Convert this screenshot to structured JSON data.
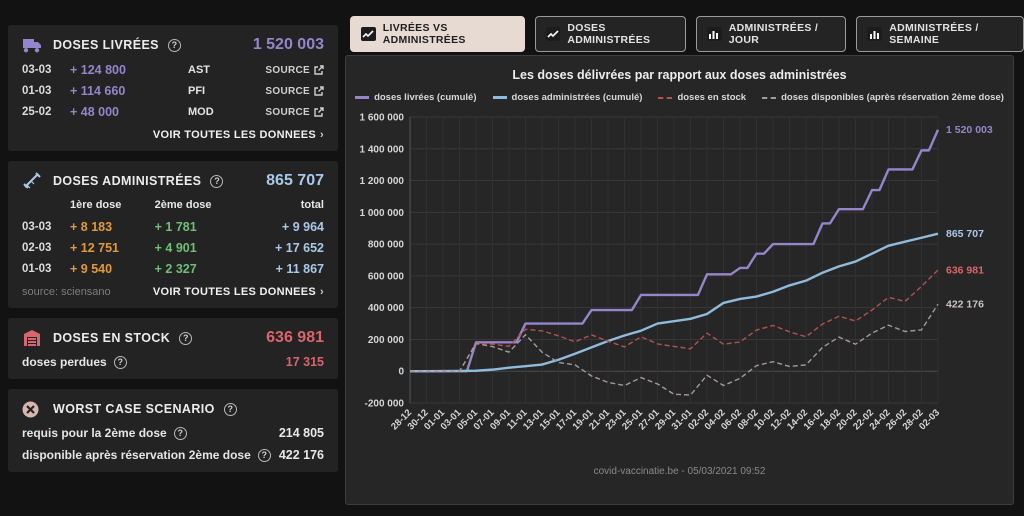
{
  "colors": {
    "purple": "#9585cb",
    "blue": "#8fbbdd",
    "red_line": "#b4524e",
    "red_text": "#d9656d",
    "gray_line": "#a39a9a",
    "orange": "#e09a3e",
    "green": "#6fbf77",
    "lightblue_text": "#a9c9e8",
    "active_tab_bg": "#e6dad3",
    "grid": "#3a3a3a"
  },
  "sidebar": {
    "livrees": {
      "title": "DOSES LIVRÉES",
      "total": "1 520 003",
      "rows": [
        {
          "date": "03-03",
          "amount": "+ 124 800",
          "brand": "AST",
          "source_label": "SOURCE"
        },
        {
          "date": "01-03",
          "amount": "+ 114 660",
          "brand": "PFI",
          "source_label": "SOURCE"
        },
        {
          "date": "25-02",
          "amount": "+ 48 000",
          "brand": "MOD",
          "source_label": "SOURCE"
        }
      ],
      "link": "VOIR TOUTES LES DONNEES",
      "chevron": "›"
    },
    "administrees": {
      "title": "DOSES ADMINISTRÉES",
      "total": "865 707",
      "columns": [
        "1ère dose",
        "2ème dose",
        "total"
      ],
      "rows": [
        {
          "date": "03-03",
          "dose1": "+ 8 183",
          "dose2": "+ 1 781",
          "total": "+ 9 964"
        },
        {
          "date": "02-03",
          "dose1": "+ 12 751",
          "dose2": "+ 4 901",
          "total": "+ 17 652"
        },
        {
          "date": "01-03",
          "dose1": "+ 9 540",
          "dose2": "+ 2 327",
          "total": "+ 11 867"
        }
      ],
      "source": "source: sciensano",
      "link": "VOIR TOUTES LES DONNEES",
      "chevron": "›"
    },
    "stock": {
      "title": "DOSES EN STOCK",
      "total": "636 981",
      "perdues_label": "doses perdues",
      "perdues_value": "17 315"
    },
    "worst": {
      "title": "WORST CASE SCENARIO",
      "rows": [
        {
          "label": "requis pour la 2ème dose",
          "value": "214 805"
        },
        {
          "label": "disponible après réservation 2ème dose",
          "value": "422 176"
        }
      ]
    }
  },
  "tabs": [
    {
      "label": "LIVRÉES VS ADMINISTRÉES",
      "active": true,
      "icon": "line-chart"
    },
    {
      "label": "DOSES ADMINISTRÉES",
      "active": false,
      "icon": "line-chart"
    },
    {
      "label": "ADMINISTRÉES / JOUR",
      "active": false,
      "icon": "bar-chart"
    },
    {
      "label": "ADMINISTRÉES / SEMAINE",
      "active": false,
      "icon": "bar-chart"
    }
  ],
  "chart_data": {
    "type": "line",
    "title": "Les doses délivrées par rapport aux doses administrées",
    "footer": "covid-vaccinatie.be - 05/03/2021 09:52",
    "ylim": [
      -200000,
      1600000
    ],
    "ytick_step": 200000,
    "grid": true,
    "legend_position": "top",
    "x": [
      "28-12",
      "30-12",
      "01-01",
      "03-01",
      "05-01",
      "07-01",
      "09-01",
      "11-01",
      "13-01",
      "15-01",
      "17-01",
      "19-01",
      "21-01",
      "23-01",
      "25-01",
      "27-01",
      "29-01",
      "31-01",
      "02-02",
      "04-02",
      "06-02",
      "08-02",
      "10-02",
      "12-02",
      "14-02",
      "16-02",
      "18-02",
      "20-02",
      "22-02",
      "24-02",
      "26-02",
      "28-02",
      "02-03"
    ],
    "series": [
      {
        "name": "doses livrées (cumulé)",
        "color": "#9585cb",
        "dash": false,
        "end_label": "1 520 003",
        "end_label_color": "#9585cb",
        "step": true,
        "values": [
          0,
          0,
          0,
          0,
          182000,
          182000,
          182000,
          300000,
          300000,
          300000,
          300000,
          385000,
          385000,
          385000,
          480000,
          480000,
          480000,
          480000,
          610000,
          610000,
          650000,
          740000,
          800000,
          800000,
          800000,
          930000,
          1020000,
          1020000,
          1140000,
          1270000,
          1270000,
          1390000,
          1520003
        ]
      },
      {
        "name": "doses administrées (cumulé)",
        "color": "#8fbbdd",
        "dash": false,
        "end_label": "865 707",
        "end_label_color": "#a9c9e8",
        "step": false,
        "values": [
          0,
          0,
          1000,
          2000,
          3000,
          10000,
          22000,
          32000,
          42000,
          72000,
          110000,
          150000,
          190000,
          225000,
          255000,
          300000,
          315000,
          330000,
          360000,
          430000,
          455000,
          470000,
          500000,
          540000,
          570000,
          620000,
          660000,
          690000,
          740000,
          790000,
          815000,
          840000,
          865707
        ]
      },
      {
        "name": "doses en stock",
        "color": "#b4524e",
        "dash": true,
        "end_label": "636 981",
        "end_label_color": "#d9656d",
        "step": false,
        "values": [
          0,
          0,
          0,
          0,
          177000,
          170000,
          157000,
          264000,
          254000,
          223000,
          185000,
          229000,
          189000,
          153000,
          217000,
          172000,
          156000,
          141000,
          240000,
          170000,
          184000,
          259000,
          288000,
          248000,
          217000,
          297000,
          346000,
          316000,
          385000,
          465000,
          439000,
          534000,
          636981
        ]
      },
      {
        "name": "doses disponibles (après réservation 2ème dose)",
        "color": "#a39a9a",
        "dash": true,
        "end_label": "422 176",
        "end_label_color": "#c9c3c3",
        "step": false,
        "values": [
          0,
          0,
          0,
          0,
          174000,
          155000,
          120000,
          230000,
          120000,
          55000,
          40000,
          -30000,
          -70000,
          -90000,
          -40000,
          -80000,
          -145000,
          -150000,
          -25000,
          -90000,
          -45000,
          35000,
          60000,
          30000,
          40000,
          150000,
          215000,
          170000,
          240000,
          290000,
          250000,
          260000,
          422176
        ]
      }
    ]
  }
}
